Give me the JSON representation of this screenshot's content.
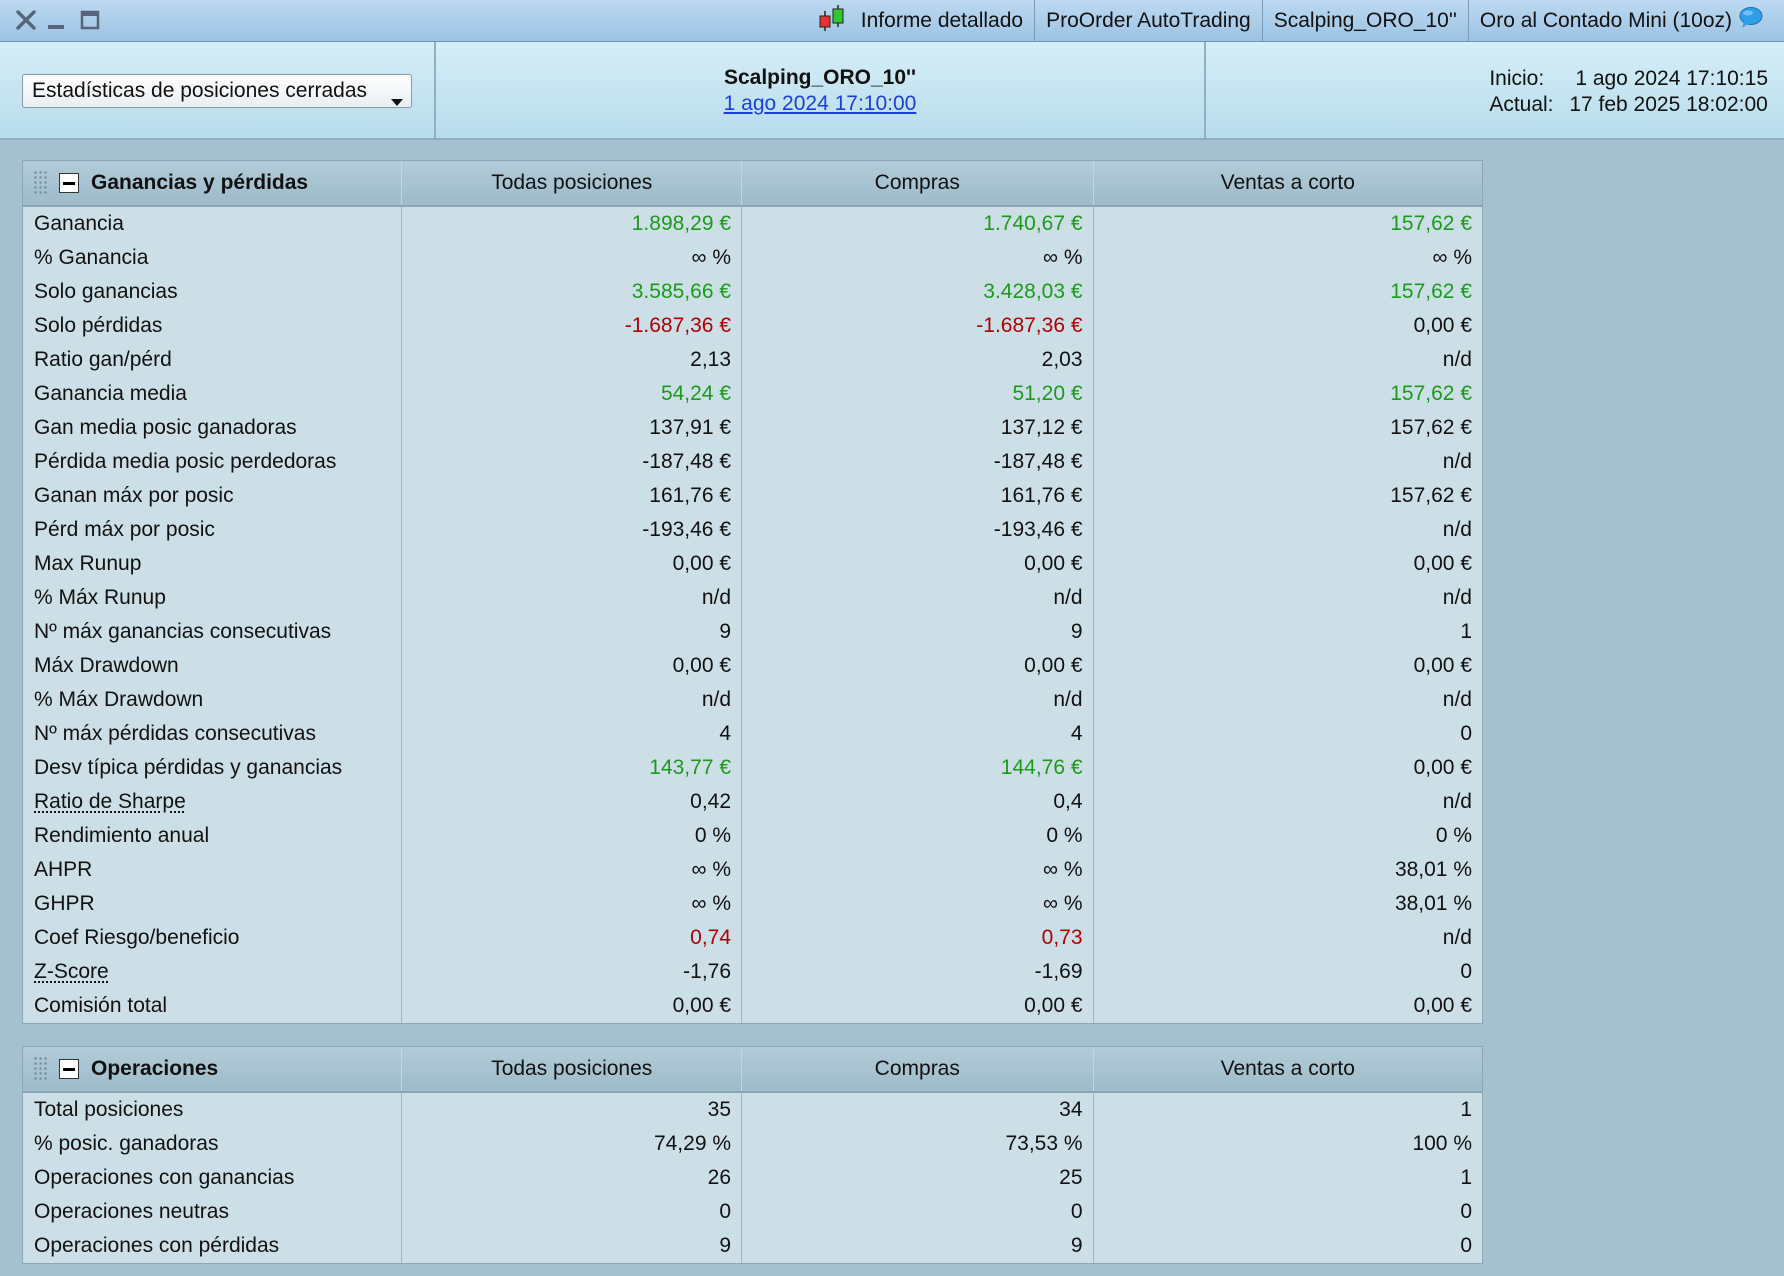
{
  "title_bar": {
    "segments": [
      "Informe detallado",
      "ProOrder AutoTrading",
      "Scalping_ORO_10''",
      "Oro al Contado Mini (10oz)"
    ],
    "icons": [
      "close-icon",
      "minimize-icon",
      "maximize-icon",
      "candlestick-icon",
      "chat-bubble-icon"
    ]
  },
  "header": {
    "stats_select": "Estadísticas de posiciones cerradas",
    "strategy_name": "Scalping_ORO_10''",
    "strategy_date": "1 ago 2024 17:10:00",
    "inicio_label": "Inicio:",
    "inicio_value": "1 ago 2024 17:10:15",
    "actual_label": "Actual:",
    "actual_value": "17 feb 2025 18:02:00"
  },
  "colors": {
    "positive": "#1c9a1c",
    "negative": "#b00000"
  },
  "tables": [
    {
      "title": "Ganancias y pérdidas",
      "columns": [
        "Todas posiciones",
        "Compras",
        "Ventas a corto"
      ],
      "rows": [
        {
          "label": "Ganancia",
          "values": [
            "1.898,29 €",
            "1.740,67 €",
            "157,62 €"
          ],
          "colors": [
            "green",
            "green",
            "green"
          ]
        },
        {
          "label": "% Ganancia",
          "values": [
            "∞ %",
            "∞ %",
            "∞ %"
          ],
          "colors": [
            "black",
            "black",
            "black"
          ]
        },
        {
          "label": "Solo ganancias",
          "values": [
            "3.585,66 €",
            "3.428,03 €",
            "157,62 €"
          ],
          "colors": [
            "green",
            "green",
            "green"
          ]
        },
        {
          "label": "Solo pérdidas",
          "values": [
            "-1.687,36 €",
            "-1.687,36 €",
            "0,00 €"
          ],
          "colors": [
            "red",
            "red",
            "black"
          ]
        },
        {
          "label": "Ratio gan/pérd",
          "values": [
            "2,13",
            "2,03",
            "n/d"
          ],
          "colors": [
            "black",
            "black",
            "black"
          ]
        },
        {
          "label": "Ganancia media",
          "values": [
            "54,24 €",
            "51,20 €",
            "157,62 €"
          ],
          "colors": [
            "green",
            "green",
            "green"
          ]
        },
        {
          "label": "Gan media posic ganadoras",
          "values": [
            "137,91 €",
            "137,12 €",
            "157,62 €"
          ],
          "colors": [
            "black",
            "black",
            "black"
          ]
        },
        {
          "label": "Pérdida media posic perdedoras",
          "values": [
            "-187,48 €",
            "-187,48 €",
            "n/d"
          ],
          "colors": [
            "black",
            "black",
            "black"
          ]
        },
        {
          "label": "Ganan máx por posic",
          "values": [
            "161,76 €",
            "161,76 €",
            "157,62 €"
          ],
          "colors": [
            "black",
            "black",
            "black"
          ]
        },
        {
          "label": "Pérd máx por posic",
          "values": [
            "-193,46 €",
            "-193,46 €",
            "n/d"
          ],
          "colors": [
            "black",
            "black",
            "black"
          ]
        },
        {
          "label": "Max Runup",
          "values": [
            "0,00 €",
            "0,00 €",
            "0,00 €"
          ],
          "colors": [
            "black",
            "black",
            "black"
          ]
        },
        {
          "label": "% Máx Runup",
          "values": [
            "n/d",
            "n/d",
            "n/d"
          ],
          "colors": [
            "black",
            "black",
            "black"
          ]
        },
        {
          "label": "Nº máx ganancias consecutivas",
          "values": [
            "9",
            "9",
            "1"
          ],
          "colors": [
            "black",
            "black",
            "black"
          ]
        },
        {
          "label": "Máx Drawdown",
          "values": [
            "0,00 €",
            "0,00 €",
            "0,00 €"
          ],
          "colors": [
            "black",
            "black",
            "black"
          ]
        },
        {
          "label": "% Máx Drawdown",
          "values": [
            "n/d",
            "n/d",
            "n/d"
          ],
          "colors": [
            "black",
            "black",
            "black"
          ]
        },
        {
          "label": "Nº máx pérdidas consecutivas",
          "values": [
            "4",
            "4",
            "0"
          ],
          "colors": [
            "black",
            "black",
            "black"
          ]
        },
        {
          "label": "Desv típica pérdidas y ganancias",
          "values": [
            "143,77 €",
            "144,76 €",
            "0,00 €"
          ],
          "colors": [
            "green",
            "green",
            "black"
          ]
        },
        {
          "label": "Ratio de Sharpe",
          "values": [
            "0,42",
            "0,4",
            "n/d"
          ],
          "colors": [
            "black",
            "black",
            "black"
          ],
          "tooltip": true
        },
        {
          "label": "Rendimiento anual",
          "values": [
            "0 %",
            "0 %",
            "0 %"
          ],
          "colors": [
            "black",
            "black",
            "black"
          ]
        },
        {
          "label": "AHPR",
          "values": [
            "∞ %",
            "∞ %",
            "38,01 %"
          ],
          "colors": [
            "black",
            "black",
            "black"
          ]
        },
        {
          "label": "GHPR",
          "values": [
            "∞ %",
            "∞ %",
            "38,01 %"
          ],
          "colors": [
            "black",
            "black",
            "black"
          ]
        },
        {
          "label": "Coef Riesgo/beneficio",
          "values": [
            "0,74",
            "0,73",
            "n/d"
          ],
          "colors": [
            "red",
            "red",
            "black"
          ]
        },
        {
          "label": "Z-Score",
          "values": [
            "-1,76",
            "-1,69",
            "0"
          ],
          "colors": [
            "black",
            "black",
            "black"
          ],
          "tooltip": true
        },
        {
          "label": "Comisión total",
          "values": [
            "0,00 €",
            "0,00 €",
            "0,00 €"
          ],
          "colors": [
            "black",
            "black",
            "black"
          ]
        }
      ]
    },
    {
      "title": "Operaciones",
      "columns": [
        "Todas posiciones",
        "Compras",
        "Ventas a corto"
      ],
      "rows": [
        {
          "label": "Total posiciones",
          "values": [
            "35",
            "34",
            "1"
          ],
          "colors": [
            "black",
            "black",
            "black"
          ]
        },
        {
          "label": "% posic. ganadoras",
          "values": [
            "74,29 %",
            "73,53 %",
            "100 %"
          ],
          "colors": [
            "black",
            "black",
            "black"
          ]
        },
        {
          "label": "Operaciones con ganancias",
          "values": [
            "26",
            "25",
            "1"
          ],
          "colors": [
            "black",
            "black",
            "black"
          ]
        },
        {
          "label": "Operaciones neutras",
          "values": [
            "0",
            "0",
            "0"
          ],
          "colors": [
            "black",
            "black",
            "black"
          ]
        },
        {
          "label": "Operaciones con pérdidas",
          "values": [
            "9",
            "9",
            "0"
          ],
          "colors": [
            "black",
            "black",
            "black"
          ]
        }
      ]
    }
  ]
}
